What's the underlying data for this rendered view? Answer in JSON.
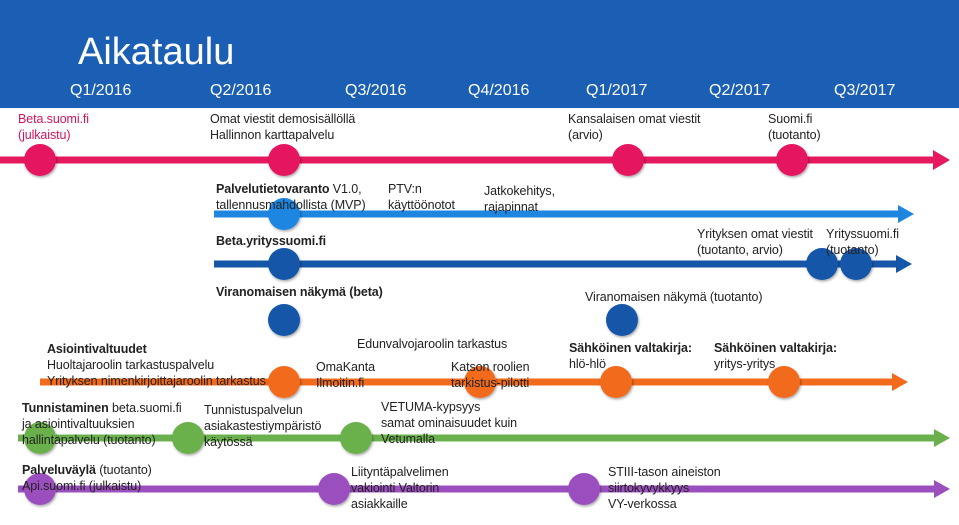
{
  "title": "Aikataulu",
  "quarters": [
    "Q1/2016",
    "Q2/2016",
    "Q3/2016",
    "Q4/2016",
    "Q1/2017",
    "Q2/2017",
    "Q3/2017"
  ],
  "colors": {
    "header": "#1b5fb4",
    "pink": "#e5195f",
    "blue": "#1f86e0",
    "navy": "#1656a8",
    "orange": "#f26a1b",
    "green": "#6ab04c",
    "purple": "#9b4fbe"
  },
  "pink": {
    "l1": {
      "a": "Beta.suomi.fi",
      "b": "(julkaistu)"
    },
    "l2": {
      "a": "Omat viestit demosisällöllä",
      "b": "Hallinnon karttapalvelu"
    },
    "l3": {
      "a": "Kansalaisen omat viestit",
      "b": "(arvio)"
    },
    "l4": {
      "a": "Suomi.fi",
      "b": "(tuotanto)"
    }
  },
  "blue": {
    "l1": {
      "bold": "Palvelutietovaranto",
      "rest": " V1.0,",
      "b": "tallennusmahdollista (MVP)"
    },
    "l2": {
      "a": "PTV:n",
      "b": "käyttöönotot"
    },
    "l3": {
      "a": "Jatkokehitys,",
      "b": "rajapinnat"
    }
  },
  "navy": {
    "l1": "Beta.yrityssuomi.fi",
    "l2": {
      "a": "Yrityksen omat viestit",
      "b": "(tuotanto, arvio)"
    },
    "l3": {
      "a": "Yrityssuomi.fi",
      "b": "(tuotanto)"
    },
    "l4": "Viranomaisen näkymä (beta)",
    "l5": "Viranomaisen näkymä (tuotanto)"
  },
  "orange": {
    "l1": {
      "a": "Asiointivaltuudet",
      "b": "Huoltajaroolin tarkastuspalvelu",
      "c": "Yrityksen nimenkirjoittajaroolin tarkastus"
    },
    "l2": "Edunvalvojaroolin tarkastus",
    "l3": {
      "a": "OmaKanta",
      "b": "Ilmoitin.fi"
    },
    "l4": {
      "a": "Katson roolien",
      "b": "tarkistus-pilotti"
    },
    "l5": {
      "a": "Sähköinen valtakirja:",
      "b": "hlö-hlö"
    },
    "l6": {
      "a": "Sähköinen valtakirja:",
      "b": "yritys-yritys"
    }
  },
  "green": {
    "l1": {
      "bold": "Tunnistaminen",
      "rest": " beta.suomi.fi",
      "b": " ja asiointivaltuuksien",
      "c": "hallintapalvelu (tuotanto)"
    },
    "l2": {
      "a": "Tunnistuspalvelun",
      "b": "asiakastestiympäristö",
      "c": "käytössä"
    },
    "l3": {
      "a": "VETUMA-kypsyys",
      "b": "samat ominaisuudet kuin",
      "c": "Vetumalla"
    }
  },
  "purple": {
    "l1": {
      "bold": "Palveluväylä",
      "rest": " (tuotanto)",
      "b": "Api.suomi.fi (julkaistu)"
    },
    "l2": {
      "a": "Liityntäpalvelimen",
      "b": "vakiointi Valtorin",
      "c": "asiakkaille"
    },
    "l3": {
      "a": "STIII-tason aineiston",
      "b": "siirtokyvykkyys",
      "c": "VY-verkossa"
    }
  }
}
